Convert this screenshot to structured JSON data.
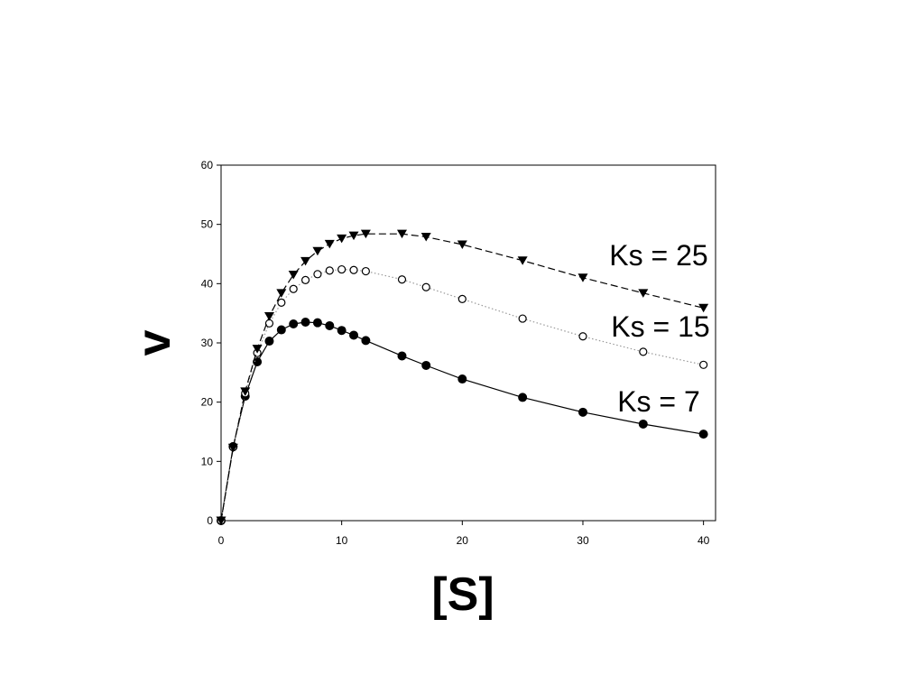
{
  "chart_data": {
    "type": "line",
    "x_label": "[S]",
    "y_label": "v",
    "x": [
      0,
      1,
      2,
      3,
      4,
      5,
      6,
      7,
      8,
      9,
      10,
      11,
      12,
      15,
      17,
      20,
      25,
      30,
      35,
      40
    ],
    "xlim": [
      0,
      41
    ],
    "xticks": [
      0,
      10,
      20,
      30,
      40
    ],
    "ylim": [
      0,
      60
    ],
    "yticks": [
      0,
      10,
      20,
      30,
      40,
      50,
      60
    ],
    "series": [
      {
        "name": "Ks = 7",
        "color": "#000000",
        "marker": "filled-circle",
        "line_style": "solid",
        "values": [
          0,
          12.5,
          21,
          26.8,
          30.3,
          32.2,
          33.2,
          33.5,
          33.4,
          32.9,
          32.1,
          31.3,
          30.4,
          27.8,
          26.2,
          23.9,
          20.8,
          18.3,
          16.3,
          14.6
        ]
      },
      {
        "name": "Ks = 15",
        "color": "#000000",
        "marker": "open-circle",
        "line_style": "dotted",
        "values": [
          0,
          12.4,
          21.5,
          28.3,
          33.3,
          36.8,
          39.1,
          40.6,
          41.6,
          42.2,
          42.4,
          42.3,
          42.1,
          40.7,
          39.4,
          37.4,
          34.1,
          31.1,
          28.5,
          26.3
        ]
      },
      {
        "name": "Ks = 25",
        "color": "#000000",
        "marker": "triangle-down",
        "line_style": "dashed",
        "values": [
          0,
          12.3,
          21.8,
          29.0,
          34.5,
          38.4,
          41.5,
          43.8,
          45.5,
          46.7,
          47.6,
          48.1,
          48.4,
          48.4,
          47.9,
          46.6,
          43.9,
          41.0,
          38.4,
          35.9
        ]
      }
    ]
  }
}
